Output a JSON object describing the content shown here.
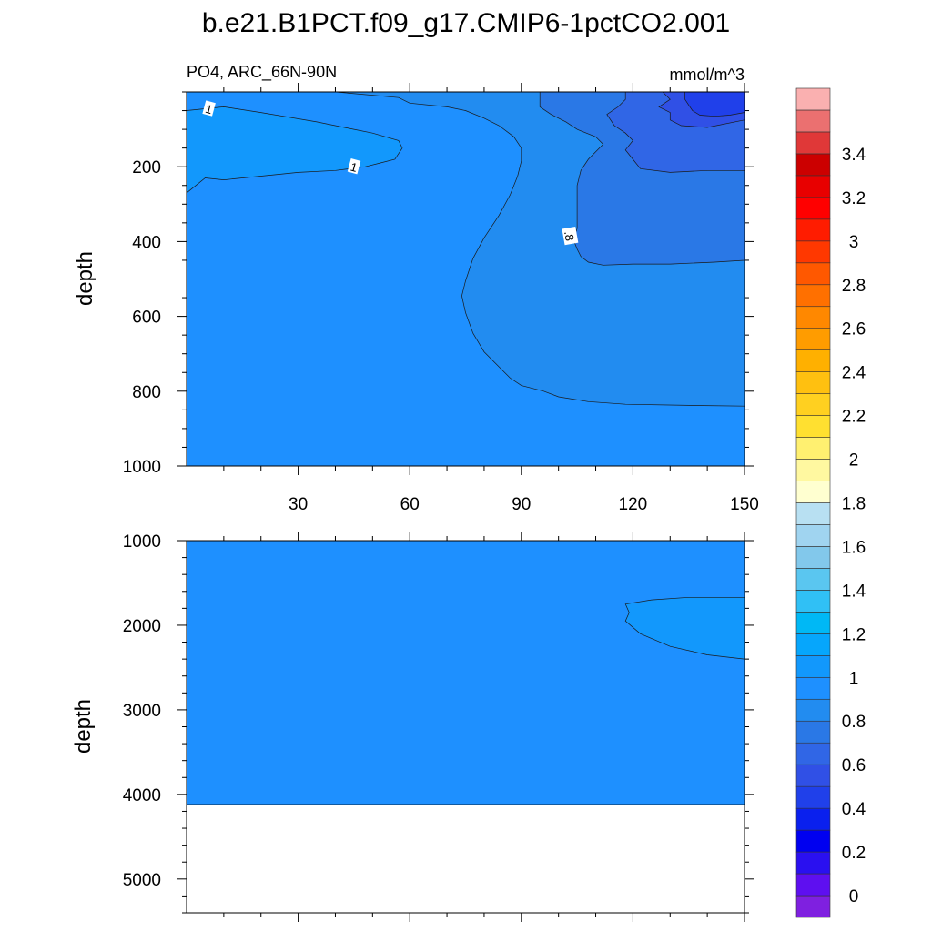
{
  "chart_data": {
    "type": "contour",
    "title": "b.e21.B1PCT.f09_g17.CMIP6-1pctCO2.001",
    "subtitle_left": "PO4, ARC_66N-90N",
    "subtitle_right": "mmol/m^3",
    "xlabel": "",
    "panels": [
      {
        "name": "upper-panel",
        "ylabel": "depth",
        "xlim": [
          0,
          150
        ],
        "ylim": [
          1000,
          0
        ],
        "xticks": [
          30,
          60,
          90,
          120,
          150
        ],
        "xtick_labels": [
          "30",
          "60",
          "90",
          "120",
          "150"
        ],
        "yticks": [
          200,
          400,
          600,
          800,
          1000
        ],
        "ytick_labels": [
          "200",
          "400",
          "600",
          "800",
          "1000"
        ],
        "background_level": 0.9,
        "regions": [
          {
            "level": 1.0,
            "points": [
              [
                0,
                50
              ],
              [
                10,
                40
              ],
              [
                20,
                55
              ],
              [
                35,
                80
              ],
              [
                45,
                100
              ],
              [
                50,
                110
              ],
              [
                57,
                130
              ],
              [
                58,
                150
              ],
              [
                57,
                165
              ],
              [
                56,
                180
              ],
              [
                52,
                190
              ],
              [
                48,
                200
              ],
              [
                40,
                210
              ],
              [
                30,
                215
              ],
              [
                20,
                225
              ],
              [
                10,
                235
              ],
              [
                5,
                230
              ],
              [
                0,
                270
              ]
            ]
          },
          {
            "level": 0.8,
            "points": [
              [
                88,
                0
              ],
              [
                150,
                0
              ],
              [
                150,
                840
              ],
              [
                135,
                838
              ],
              [
                118,
                835
              ],
              [
                108,
                828
              ],
              [
                100,
                815
              ],
              [
                96,
                800
              ],
              [
                90,
                785
              ],
              [
                87,
                765
              ],
              [
                84,
                735
              ],
              [
                80,
                695
              ],
              [
                77,
                645
              ],
              [
                75,
                590
              ],
              [
                74,
                545
              ],
              [
                75,
                505
              ],
              [
                77,
                445
              ],
              [
                80,
                390
              ],
              [
                84,
                330
              ],
              [
                87,
                275
              ],
              [
                89,
                225
              ],
              [
                90,
                185
              ],
              [
                90,
                150
              ],
              [
                88,
                120
              ],
              [
                84,
                90
              ],
              [
                80,
                70
              ],
              [
                75,
                50
              ],
              [
                70,
                40
              ],
              [
                60,
                30
              ],
              [
                57,
                15
              ],
              [
                40,
                0
              ]
            ]
          },
          {
            "level": 0.7,
            "points": [
              [
                95,
                0
              ],
              [
                150,
                0
              ],
              [
                150,
                450
              ],
              [
                142,
                455
              ],
              [
                130,
                460
              ],
              [
                120,
                460
              ],
              [
                112,
                463
              ],
              [
                108,
                455
              ],
              [
                106,
                440
              ],
              [
                105,
                420
              ],
              [
                104,
                395
              ],
              [
                105,
                365
              ],
              [
                105,
                330
              ],
              [
                105,
                290
              ],
              [
                105,
                250
              ],
              [
                106,
                210
              ],
              [
                108,
                180
              ],
              [
                110,
                160
              ],
              [
                112,
                140
              ],
              [
                110,
                120
              ],
              [
                105,
                100
              ],
              [
                102,
                80
              ],
              [
                98,
                60
              ],
              [
                95,
                40
              ]
            ]
          },
          {
            "level": 0.6,
            "points": [
              [
                118,
                0
              ],
              [
                150,
                0
              ],
              [
                150,
                210
              ],
              [
                140,
                210
              ],
              [
                130,
                215
              ],
              [
                122,
                205
              ],
              [
                120,
                180
              ],
              [
                118,
                155
              ],
              [
                120,
                130
              ],
              [
                118,
                110
              ],
              [
                115,
                90
              ],
              [
                113,
                60
              ],
              [
                116,
                40
              ],
              [
                118,
                20
              ]
            ]
          },
          {
            "level": 0.5,
            "points": [
              [
                128,
                0
              ],
              [
                150,
                0
              ],
              [
                150,
                75
              ],
              [
                140,
                95
              ],
              [
                133,
                90
              ],
              [
                130,
                75
              ],
              [
                130,
                55
              ],
              [
                127,
                40
              ],
              [
                130,
                20
              ]
            ]
          },
          {
            "level": 0.4,
            "points": [
              [
                134,
                0
              ],
              [
                150,
                0
              ],
              [
                150,
                55
              ],
              [
                146,
                62
              ],
              [
                142,
                65
              ],
              [
                138,
                62
              ],
              [
                136,
                50
              ],
              [
                135,
                35
              ],
              [
                134,
                20
              ]
            ]
          }
        ],
        "contour_labels": [
          {
            "x": 6,
            "y": 45,
            "text": "1"
          },
          {
            "x": 45,
            "y": 200,
            "text": "1"
          },
          {
            "x": 103,
            "y": 385,
            "text": ".8"
          }
        ]
      },
      {
        "name": "lower-panel",
        "ylabel": "depth",
        "xlim": [
          0,
          150
        ],
        "ylim": [
          1000,
          5400
        ],
        "xticks": [
          30,
          60,
          90,
          120,
          150
        ],
        "yticks": [
          1000,
          2000,
          3000,
          4000,
          5000
        ],
        "ytick_labels": [
          "1000",
          "2000",
          "3000",
          "4000",
          "5000"
        ],
        "background_level": 0.9,
        "fill_bottom": 4120,
        "regions": [
          {
            "level": 1.0,
            "points": [
              [
                118,
                1750
              ],
              [
                125,
                1700
              ],
              [
                135,
                1670
              ],
              [
                150,
                1670
              ],
              [
                150,
                2400
              ],
              [
                140,
                2350
              ],
              [
                130,
                2250
              ],
              [
                122,
                2100
              ],
              [
                118,
                1950
              ],
              [
                119,
                1850
              ]
            ]
          }
        ]
      }
    ],
    "colorbar": {
      "orientation": "vertical",
      "levels": [
        -0.1,
        0,
        0.1,
        0.2,
        0.3,
        0.4,
        0.5,
        0.6,
        0.7,
        0.8,
        0.9,
        1.0,
        1.1,
        1.2,
        1.3,
        1.4,
        1.5,
        1.6,
        1.7,
        1.8,
        1.9,
        2.0,
        2.1,
        2.2,
        2.3,
        2.4,
        2.5,
        2.6,
        2.7,
        2.8,
        2.9,
        3.0,
        3.1,
        3.2,
        3.3,
        3.4,
        3.5,
        3.6
      ],
      "colors": [
        "#7f20e0",
        "#5e0ff0",
        "#2a10f0",
        "#0000f0",
        "#0a20ee",
        "#2040ea",
        "#3050e6",
        "#3066e6",
        "#2a78e6",
        "#228cf0",
        "#1e90ff",
        "#1298fc",
        "#06a6fc",
        "#00b8f5",
        "#30c0f5",
        "#5ac6f0",
        "#82c8eb",
        "#a0d4f0",
        "#b8e0f2",
        "#ffffd0",
        "#fff8a0",
        "#fff070",
        "#ffe030",
        "#ffd020",
        "#ffc010",
        "#ffb000",
        "#ff9c00",
        "#ff8800",
        "#ff7000",
        "#ff5800",
        "#ff3800",
        "#ff1c00",
        "#ff0000",
        "#e80000",
        "#cc0000",
        "#e03838",
        "#eb7070",
        "#fab0b0"
      ],
      "tick_labels": [
        "0",
        "0.2",
        "0.4",
        "0.6",
        "0.8",
        "1",
        "1.2",
        "1.4",
        "1.6",
        "1.8",
        "2",
        "2.2",
        "2.4",
        "2.6",
        "2.8",
        "3",
        "3.2",
        "3.4"
      ]
    }
  }
}
